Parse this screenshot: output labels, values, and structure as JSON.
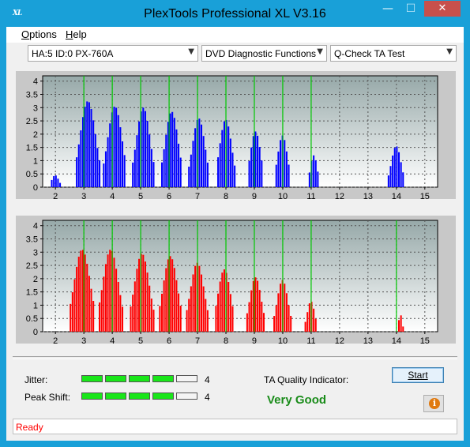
{
  "window": {
    "title": "PlexTools Professional XL V3.16",
    "icon_text": "XL",
    "controls": {
      "minimize": "—",
      "maximize": "☐",
      "close": "✕"
    }
  },
  "menu": [
    {
      "accel": "O",
      "rest": "ptions"
    },
    {
      "accel": "H",
      "rest": "elp"
    }
  ],
  "toolbar": {
    "drive": "HA:5 ID:0  PX-760A",
    "function": "DVD Diagnostic Functions",
    "test": "Q-Check TA Test"
  },
  "colors": {
    "top": "#0000ff",
    "bottom": "#ff0000",
    "marker": "#00c800"
  },
  "chart_data": [
    {
      "type": "bar",
      "name": "TA distribution (top)",
      "x_ticks": [
        "2",
        "3",
        "4",
        "5",
        "6",
        "7",
        "8",
        "9",
        "10",
        "11",
        "12",
        "13",
        "14",
        "15"
      ],
      "y_ticks": [
        "0",
        "0.5",
        "1",
        "1.5",
        "2",
        "2.5",
        "3",
        "3.5",
        "4"
      ],
      "xlim": [
        1.55,
        15.45
      ],
      "ylim": [
        0,
        4.2
      ],
      "peaks": [
        {
          "center": 2.0,
          "height": 0.45,
          "width": 0.12
        },
        {
          "center": 3.15,
          "height": 3.25,
          "width": 0.27
        },
        {
          "center": 4.1,
          "height": 3.05,
          "width": 0.25
        },
        {
          "center": 5.1,
          "height": 3.0,
          "width": 0.24
        },
        {
          "center": 6.1,
          "height": 2.85,
          "width": 0.23
        },
        {
          "center": 7.05,
          "height": 2.6,
          "width": 0.22
        },
        {
          "center": 8.0,
          "height": 2.55,
          "width": 0.21
        },
        {
          "center": 9.05,
          "height": 2.1,
          "width": 0.18
        },
        {
          "center": 10.0,
          "height": 1.95,
          "width": 0.17
        },
        {
          "center": 11.1,
          "height": 1.2,
          "width": 0.12
        },
        {
          "center": 14.0,
          "height": 1.55,
          "width": 0.17
        }
      ],
      "markers": [
        3,
        4,
        5,
        6,
        7,
        8,
        9,
        10,
        11
      ]
    },
    {
      "type": "bar",
      "name": "TA distribution (bottom)",
      "x_ticks": [
        "2",
        "3",
        "4",
        "5",
        "6",
        "7",
        "8",
        "9",
        "10",
        "11",
        "12",
        "13",
        "14",
        "15"
      ],
      "y_ticks": [
        "0",
        "0.5",
        "1",
        "1.5",
        "2",
        "2.5",
        "3",
        "3.5",
        "4"
      ],
      "xlim": [
        1.55,
        15.45
      ],
      "ylim": [
        0,
        4.2
      ],
      "peaks": [
        {
          "center": 2.95,
          "height": 3.1,
          "width": 0.28
        },
        {
          "center": 3.95,
          "height": 3.1,
          "width": 0.27
        },
        {
          "center": 5.05,
          "height": 2.95,
          "width": 0.26
        },
        {
          "center": 6.05,
          "height": 2.85,
          "width": 0.25
        },
        {
          "center": 7.0,
          "height": 2.6,
          "width": 0.24
        },
        {
          "center": 7.95,
          "height": 2.35,
          "width": 0.22
        },
        {
          "center": 9.05,
          "height": 2.05,
          "width": 0.2
        },
        {
          "center": 10.0,
          "height": 1.95,
          "width": 0.19
        },
        {
          "center": 11.0,
          "height": 1.15,
          "width": 0.13
        },
        {
          "center": 14.15,
          "height": 0.65,
          "width": 0.06
        }
      ],
      "markers": [
        3,
        4,
        5,
        6,
        7,
        8,
        9,
        10,
        11,
        14
      ]
    }
  ],
  "metrics": {
    "jitter_label": "Jitter:",
    "jitter_value": "4",
    "jitter_segments_on": 4,
    "peak_label": "Peak Shift:",
    "peak_value": "4",
    "peak_segments_on": 4,
    "segments_total": 5
  },
  "quality": {
    "label": "TA Quality Indicator:",
    "value": "Very Good"
  },
  "buttons": {
    "start": "Start",
    "info_icon": "i"
  },
  "status": {
    "text": "Ready"
  }
}
